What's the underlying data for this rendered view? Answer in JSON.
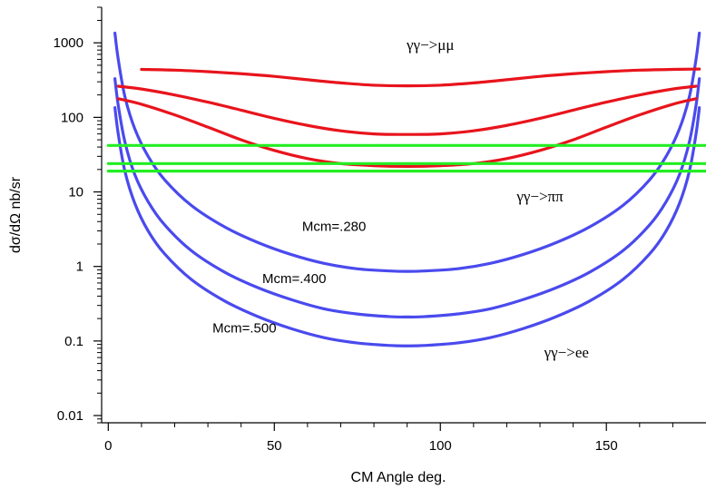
{
  "chart_data": {
    "type": "line",
    "title": "",
    "xlabel": "CM Angle deg.",
    "ylabel": "dσ/dΩ nb/sr",
    "xlim": [
      -2,
      180
    ],
    "ylim": [
      0.008,
      3000
    ],
    "yscale": "log",
    "grid": false,
    "xticks": [
      0,
      50,
      100,
      150
    ],
    "xtick_labels": [
      "0",
      "50",
      "100",
      "150"
    ],
    "yticks": [
      0.01,
      0.1,
      1,
      10,
      100,
      1000
    ],
    "ytick_labels": [
      "0.01",
      "0.1",
      "1",
      "10",
      "100",
      "1000"
    ],
    "colors": {
      "mumu": "#e8141c",
      "pipi": "#22ee22",
      "ee": "#4a4aee",
      "axis": "#000000"
    },
    "series": [
      {
        "group": "mumu",
        "x": [
          10,
          20,
          30,
          40,
          50,
          60,
          70,
          80,
          90,
          100,
          110,
          120,
          130,
          140,
          150,
          160,
          170,
          178
        ],
        "y": [
          440,
          430,
          410,
          385,
          355,
          320,
          290,
          270,
          265,
          270,
          290,
          320,
          355,
          385,
          410,
          430,
          440,
          445
        ]
      },
      {
        "group": "mumu",
        "x": [
          3,
          10,
          20,
          30,
          40,
          50,
          60,
          70,
          80,
          90,
          100,
          110,
          120,
          130,
          140,
          150,
          160,
          170,
          177
        ],
        "y": [
          262,
          240,
          200,
          160,
          125,
          97,
          78,
          66,
          60,
          59,
          60,
          66,
          78,
          97,
          125,
          160,
          200,
          240,
          262
        ]
      },
      {
        "group": "mumu",
        "x": [
          3,
          10,
          20,
          30,
          40,
          50,
          60,
          70,
          80,
          90,
          100,
          110,
          120,
          130,
          140,
          150,
          160,
          170,
          177
        ],
        "y": [
          178,
          150,
          108,
          74,
          50,
          36,
          28,
          24,
          22.5,
          22,
          22.5,
          24,
          28,
          36,
          50,
          74,
          108,
          150,
          178
        ]
      },
      {
        "group": "pipi",
        "x": [
          0,
          180
        ],
        "y": [
          42,
          42
        ]
      },
      {
        "group": "pipi",
        "x": [
          0,
          180
        ],
        "y": [
          24,
          24
        ]
      },
      {
        "group": "pipi",
        "x": [
          0,
          180
        ],
        "y": [
          19,
          19
        ]
      },
      {
        "group": "ee",
        "name": "Mcm=.280",
        "x": [
          2,
          3,
          5,
          8,
          12,
          17,
          25,
          35,
          45,
          55,
          65,
          75,
          85,
          90,
          95,
          105,
          115,
          125,
          135,
          145,
          155,
          163,
          168,
          172,
          175,
          177,
          178
        ],
        "y": [
          1350,
          600,
          190,
          70,
          30,
          14.5,
          6.6,
          3.4,
          2.1,
          1.45,
          1.1,
          0.93,
          0.87,
          0.86,
          0.87,
          0.93,
          1.1,
          1.45,
          2.1,
          3.4,
          6.6,
          14.5,
          30,
          70,
          190,
          600,
          1350
        ]
      },
      {
        "group": "ee",
        "name": "Mcm=.400",
        "x": [
          2,
          3,
          5,
          8,
          12,
          17,
          25,
          35,
          45,
          55,
          65,
          75,
          85,
          90,
          95,
          105,
          115,
          125,
          135,
          145,
          155,
          163,
          168,
          172,
          175,
          177,
          178
        ],
        "y": [
          330,
          145,
          47,
          17,
          7.4,
          3.6,
          1.63,
          0.84,
          0.52,
          0.36,
          0.27,
          0.23,
          0.212,
          0.21,
          0.212,
          0.23,
          0.27,
          0.36,
          0.52,
          0.84,
          1.63,
          3.6,
          7.4,
          17,
          47,
          145,
          330
        ]
      },
      {
        "group": "ee",
        "name": "Mcm=.500",
        "x": [
          2,
          3,
          5,
          8,
          12,
          17,
          25,
          35,
          45,
          55,
          65,
          75,
          85,
          90,
          95,
          105,
          115,
          125,
          135,
          145,
          155,
          163,
          168,
          172,
          175,
          177,
          178
        ],
        "y": [
          135,
          60,
          19,
          7.0,
          3.0,
          1.47,
          0.67,
          0.345,
          0.213,
          0.147,
          0.111,
          0.094,
          0.087,
          0.086,
          0.087,
          0.094,
          0.111,
          0.147,
          0.213,
          0.345,
          0.67,
          1.47,
          3.0,
          7.0,
          19,
          60,
          135
        ]
      }
    ],
    "annotations": [
      {
        "id": "mumu",
        "text": "γγ−>μμ",
        "x": 97,
        "y": 800
      },
      {
        "id": "pipi",
        "text": "γγ−>ππ",
        "x": 130,
        "y": 7.5
      },
      {
        "id": "ee",
        "text": "γγ−>ee",
        "x": 138,
        "y": 0.06
      },
      {
        "id": "m280",
        "text": "Mcm=.280",
        "x": 68,
        "y": 3.0
      },
      {
        "id": "m400",
        "text": "Mcm=.400",
        "x": 56,
        "y": 0.6
      },
      {
        "id": "m500",
        "text": "Mcm=.500",
        "x": 41,
        "y": 0.13
      }
    ]
  }
}
